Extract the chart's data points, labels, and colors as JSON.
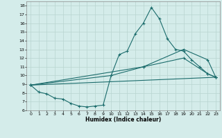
{
  "title": "",
  "xlabel": "Humidex (Indice chaleur)",
  "xlim": [
    -0.5,
    23.5
  ],
  "ylim": [
    6,
    18.5
  ],
  "yticks": [
    6,
    7,
    8,
    9,
    10,
    11,
    12,
    13,
    14,
    15,
    16,
    17,
    18
  ],
  "xticks": [
    0,
    1,
    2,
    3,
    4,
    5,
    6,
    7,
    8,
    9,
    10,
    11,
    12,
    13,
    14,
    15,
    16,
    17,
    18,
    19,
    20,
    21,
    22,
    23
  ],
  "bg_color": "#d4ecea",
  "grid_color": "#b8d4d0",
  "line_color": "#1a6b6b",
  "series": [
    {
      "x": [
        0,
        1,
        2,
        3,
        4,
        5,
        6,
        7,
        8,
        9,
        10,
        11,
        12,
        13,
        14,
        15,
        16,
        17,
        18,
        19,
        20,
        21,
        22,
        23
      ],
      "y": [
        8.9,
        8.1,
        7.9,
        7.4,
        7.3,
        6.8,
        6.5,
        6.4,
        6.5,
        6.6,
        10.0,
        12.4,
        12.8,
        14.8,
        16.0,
        17.8,
        16.5,
        14.2,
        13.0,
        12.8,
        11.8,
        11.0,
        10.2,
        9.8
      ]
    },
    {
      "x": [
        0,
        23
      ],
      "y": [
        8.9,
        9.8
      ]
    },
    {
      "x": [
        0,
        10,
        14,
        19,
        22,
        23
      ],
      "y": [
        8.9,
        10.0,
        11.0,
        12.0,
        10.2,
        9.8
      ]
    },
    {
      "x": [
        0,
        14,
        19,
        22,
        23
      ],
      "y": [
        8.9,
        11.0,
        13.0,
        11.8,
        9.8
      ]
    }
  ]
}
